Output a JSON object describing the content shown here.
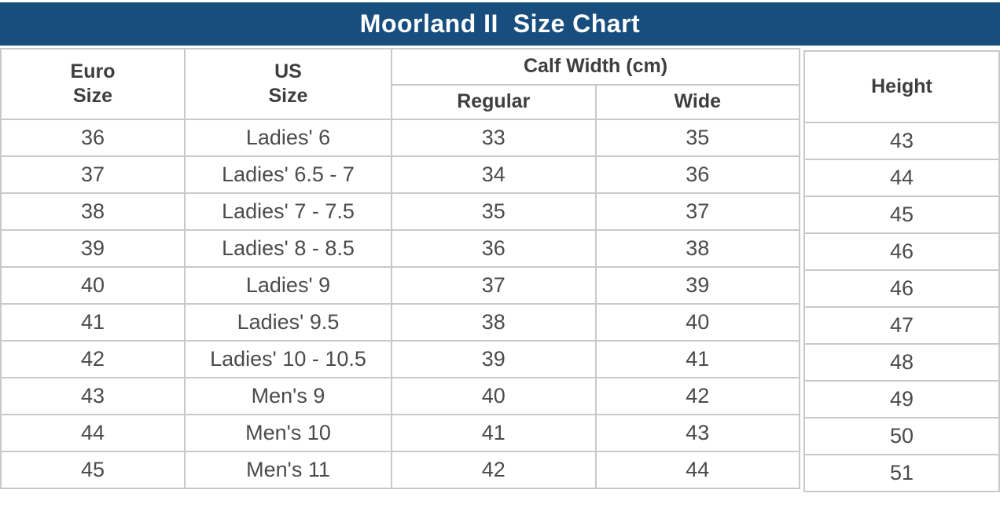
{
  "title": "Moorland II  Size Chart",
  "colors": {
    "navy": "#174E7E",
    "border": "#C9C9C9",
    "header_text": "#3E3E3E",
    "cell_text": "#4B4B4B",
    "title_text": "#FFFFFF"
  },
  "chart_data": {
    "type": "table",
    "title": "Moorland II Size Chart",
    "columns": [
      "Euro Size",
      "US Size",
      "Calf Width (cm) Regular",
      "Calf Width (cm) Wide",
      "Height"
    ],
    "header": {
      "euro": [
        "Euro",
        "Size"
      ],
      "us": [
        "US",
        "Size"
      ],
      "calf_group": "Calf Width (cm)",
      "calf_regular": "Regular",
      "calf_wide": "Wide",
      "height": "Height"
    },
    "rows": [
      [
        "36",
        "Ladies' 6",
        "33",
        "35",
        "43"
      ],
      [
        "37",
        "Ladies' 6.5 - 7",
        "34",
        "36",
        "44"
      ],
      [
        "38",
        "Ladies' 7 - 7.5",
        "35",
        "37",
        "45"
      ],
      [
        "39",
        "Ladies' 8 - 8.5",
        "36",
        "38",
        "46"
      ],
      [
        "40",
        "Ladies' 9",
        "37",
        "39",
        "46"
      ],
      [
        "41",
        "Ladies' 9.5",
        "38",
        "40",
        "47"
      ],
      [
        "42",
        "Ladies' 10 - 10.5",
        "39",
        "41",
        "48"
      ],
      [
        "43",
        "Men's 9",
        "40",
        "42",
        "49"
      ],
      [
        "44",
        "Men's 10",
        "41",
        "43",
        "50"
      ],
      [
        "45",
        "Men's 11",
        "42",
        "44",
        "51"
      ]
    ]
  }
}
